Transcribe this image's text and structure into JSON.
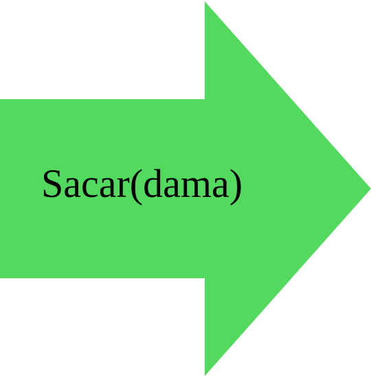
{
  "arrow": {
    "label": "Sacar(dama)",
    "fill_color": "#53d95e",
    "text_color": "#000000",
    "direction": "right"
  }
}
